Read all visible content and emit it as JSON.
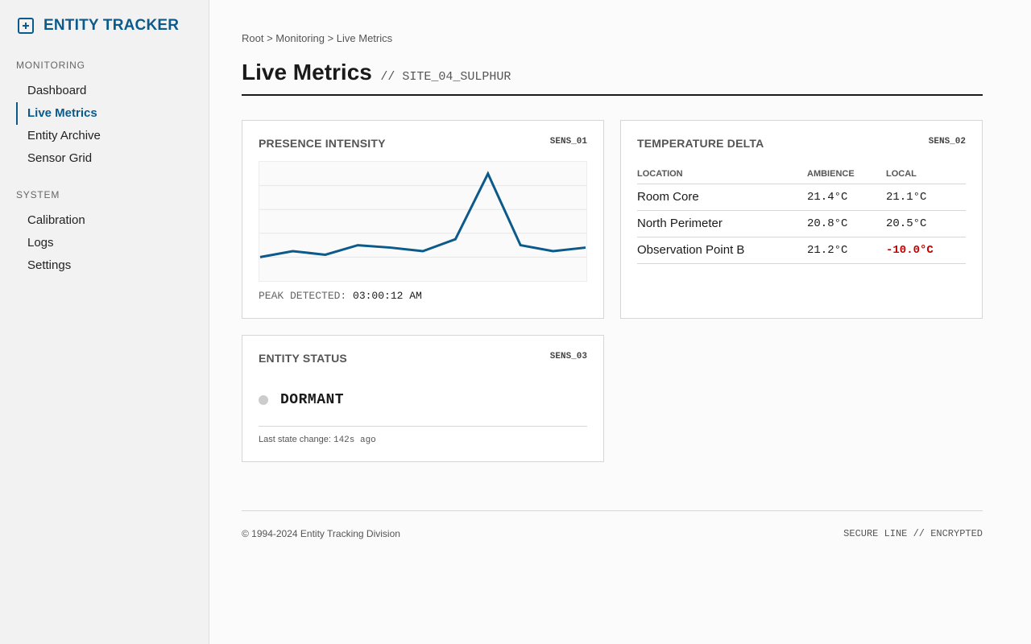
{
  "sidebar": {
    "brand": {
      "title": "ENTITY TRACKER",
      "icon": "plus-square-icon"
    },
    "sections": [
      {
        "heading": "MONITORING",
        "items": [
          {
            "label": "Dashboard",
            "active": false
          },
          {
            "label": "Live Metrics",
            "active": true
          },
          {
            "label": "Entity Archive",
            "active": false
          },
          {
            "label": "Sensor Grid",
            "active": false
          }
        ]
      },
      {
        "heading": "SYSTEM",
        "items": [
          {
            "label": "Calibration",
            "active": false
          },
          {
            "label": "Logs",
            "active": false
          },
          {
            "label": "Settings",
            "active": false
          }
        ]
      }
    ]
  },
  "main": {
    "breadcrumb": "Root > Monitoring > Live Metrics",
    "title": "Live Metrics",
    "site_tag": "// SITE_04_SULPHUR"
  },
  "presence": {
    "title": "PRESENCE INTENSITY",
    "code": "SENS_01",
    "peak_label": "PEAK DETECTED:",
    "peak_time": "03:00:12 AM",
    "line_color": "#0b5a8a"
  },
  "chart_data": {
    "type": "line",
    "x": [
      0,
      1,
      2,
      3,
      4,
      5,
      6,
      7,
      8,
      9,
      10
    ],
    "values": [
      20,
      25,
      22,
      30,
      28,
      25,
      35,
      90,
      30,
      25,
      28
    ],
    "ylim": [
      0,
      100
    ],
    "grid": true
  },
  "temperature": {
    "title": "TEMPERATURE DELTA",
    "code": "SENS_02",
    "headers": [
      "LOCATION",
      "AMBIENCE",
      "LOCAL"
    ],
    "rows": [
      {
        "location": "Room Core",
        "ambience": "21.4°C",
        "local": "21.1°C",
        "alert": false
      },
      {
        "location": "North Perimeter",
        "ambience": "20.8°C",
        "local": "20.5°C",
        "alert": false
      },
      {
        "location": "Observation Point B",
        "ambience": "21.2°C",
        "local": "-10.0°C",
        "alert": true
      }
    ],
    "alert_color": "#c40000"
  },
  "status": {
    "title": "ENTITY STATUS",
    "code": "SENS_03",
    "state": "DORMANT",
    "indicator_color": "#cccccc",
    "change_label": "Last state change:",
    "change_value": "142s ago"
  },
  "footer": {
    "copyright": "© 1994-2024 Entity Tracking Division",
    "secure": "SECURE LINE // ENCRYPTED"
  }
}
